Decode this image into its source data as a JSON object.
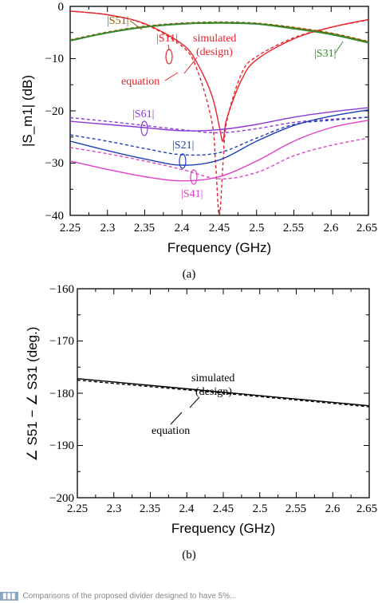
{
  "colors": {
    "s11": "#e8232a",
    "s21": "#1f3fb8",
    "s31": "#2e8b2e",
    "s41": "#e040c8",
    "s51": "#8b5a00",
    "s61": "#8a3ad8",
    "black": "#000000"
  },
  "chart_data": [
    {
      "type": "line",
      "caption": "(a)",
      "xlabel": "Frequency (GHz)",
      "ylabel": "|S_m1| (dB)",
      "xlim": [
        2.25,
        2.65
      ],
      "ylim": [
        -40,
        0
      ],
      "xticks": [
        "2.25",
        "2.3",
        "2.35",
        "2.4",
        "2.45",
        "2.5",
        "2.55",
        "2.6",
        "2.65"
      ],
      "yticks": [
        "0",
        "−10",
        "−20",
        "−30",
        "−40"
      ],
      "grid": false,
      "line_styles": {
        "solid": "simulated (design)",
        "dashed": "equation"
      },
      "series": [
        {
          "name": "|S11|",
          "color_key": "s11",
          "style": "solid",
          "x": [
            2.25,
            2.3,
            2.35,
            2.4,
            2.42,
            2.44,
            2.45,
            2.455,
            2.46,
            2.48,
            2.5,
            2.55,
            2.6,
            2.65
          ],
          "y": [
            -0.9,
            -1.6,
            -3.3,
            -7.2,
            -10.8,
            -17.0,
            -23.0,
            -25.8,
            -21.5,
            -14.0,
            -10.2,
            -6.2,
            -4.0,
            -2.5
          ]
        },
        {
          "name": "|S11|",
          "color_key": "s11",
          "style": "dashed",
          "x": [
            2.25,
            2.3,
            2.35,
            2.4,
            2.42,
            2.44,
            2.445,
            2.45,
            2.455,
            2.46,
            2.48,
            2.5,
            2.55,
            2.6,
            2.65
          ],
          "y": [
            -0.9,
            -1.6,
            -3.4,
            -7.6,
            -12.0,
            -22.0,
            -30.0,
            -40.0,
            -30.0,
            -22.0,
            -12.8,
            -9.6,
            -6.0,
            -4.0,
            -2.6
          ]
        },
        {
          "name": "|S51|",
          "color_key": "s51",
          "style": "solid",
          "x": [
            2.25,
            2.3,
            2.35,
            2.4,
            2.45,
            2.5,
            2.55,
            2.6,
            2.65
          ],
          "y": [
            -6.5,
            -5.0,
            -3.9,
            -3.3,
            -3.1,
            -3.3,
            -4.1,
            -5.2,
            -6.8
          ]
        },
        {
          "name": "|S51|",
          "color_key": "s51",
          "style": "dashed",
          "x": [
            2.25,
            2.3,
            2.35,
            2.4,
            2.45,
            2.5,
            2.55,
            2.6,
            2.65
          ],
          "y": [
            -6.4,
            -4.9,
            -3.8,
            -3.2,
            -3.0,
            -3.2,
            -4.0,
            -5.1,
            -6.7
          ]
        },
        {
          "name": "|S31|",
          "color_key": "s31",
          "style": "solid",
          "x": [
            2.25,
            2.3,
            2.35,
            2.4,
            2.45,
            2.5,
            2.55,
            2.6,
            2.65
          ],
          "y": [
            -6.6,
            -5.1,
            -4.0,
            -3.4,
            -3.2,
            -3.4,
            -4.3,
            -5.4,
            -7.0
          ]
        },
        {
          "name": "|S31|",
          "color_key": "s31",
          "style": "dashed",
          "x": [
            2.25,
            2.3,
            2.35,
            2.4,
            2.45,
            2.5,
            2.55,
            2.6,
            2.65
          ],
          "y": [
            -6.5,
            -5.0,
            -3.9,
            -3.3,
            -3.1,
            -3.3,
            -4.2,
            -5.3,
            -6.9
          ]
        },
        {
          "name": "|S61|",
          "color_key": "s61",
          "style": "solid",
          "x": [
            2.25,
            2.3,
            2.35,
            2.4,
            2.45,
            2.5,
            2.55,
            2.6,
            2.65
          ],
          "y": [
            -22.0,
            -22.6,
            -23.2,
            -23.8,
            -23.6,
            -22.6,
            -21.2,
            -20.2,
            -19.4
          ]
        },
        {
          "name": "|S61|",
          "color_key": "s61",
          "style": "dashed",
          "x": [
            2.25,
            2.3,
            2.35,
            2.4,
            2.45,
            2.5,
            2.55,
            2.6,
            2.65
          ],
          "y": [
            -21.3,
            -22.0,
            -22.8,
            -23.6,
            -24.2,
            -23.4,
            -22.2,
            -21.6,
            -21.2
          ]
        },
        {
          "name": "|S21|",
          "color_key": "s21",
          "style": "solid",
          "x": [
            2.25,
            2.3,
            2.35,
            2.4,
            2.45,
            2.5,
            2.55,
            2.6,
            2.65
          ],
          "y": [
            -25.8,
            -27.6,
            -29.2,
            -30.4,
            -29.4,
            -25.8,
            -22.8,
            -21.0,
            -19.8
          ]
        },
        {
          "name": "|S21|",
          "color_key": "s21",
          "style": "dashed",
          "x": [
            2.25,
            2.3,
            2.35,
            2.4,
            2.45,
            2.5,
            2.55,
            2.6,
            2.65
          ],
          "y": [
            -24.6,
            -25.8,
            -27.2,
            -28.4,
            -28.0,
            -25.2,
            -22.6,
            -21.8,
            -21.2
          ]
        },
        {
          "name": "|S41|",
          "color_key": "s41",
          "style": "solid",
          "x": [
            2.25,
            2.3,
            2.35,
            2.4,
            2.45,
            2.5,
            2.55,
            2.6,
            2.65
          ],
          "y": [
            -29.6,
            -31.2,
            -32.6,
            -33.4,
            -32.6,
            -29.6,
            -25.8,
            -23.2,
            -21.8
          ]
        },
        {
          "name": "|S41|",
          "color_key": "s41",
          "style": "dashed",
          "x": [
            2.25,
            2.3,
            2.35,
            2.4,
            2.45,
            2.5,
            2.55,
            2.6,
            2.65
          ],
          "y": [
            -27.0,
            -28.2,
            -29.6,
            -31.2,
            -33.0,
            -31.8,
            -28.6,
            -26.6,
            -25.2
          ]
        }
      ],
      "annotations": {
        "s51": "|S51|",
        "s11": "|S11|",
        "s31": "|S31|",
        "s61": "|S61|",
        "s21": "|S21|",
        "s41": "|S41|",
        "simulated": "simulated",
        "design": "(design)",
        "equation": "equation"
      }
    },
    {
      "type": "line",
      "caption": "(b)",
      "xlabel": "Frequency (GHz)",
      "ylabel": "∠ S51 − ∠ S31 (deg.)",
      "xlim": [
        2.25,
        2.65
      ],
      "ylim": [
        -200,
        -160
      ],
      "xticks": [
        "2.25",
        "2.3",
        "2.35",
        "2.4",
        "2.45",
        "2.5",
        "2.55",
        "2.6",
        "2.65"
      ],
      "yticks": [
        "−160",
        "−170",
        "−180",
        "−190",
        "−200"
      ],
      "grid": false,
      "series": [
        {
          "name": "simulated (design)",
          "style": "solid",
          "x": [
            2.25,
            2.45,
            2.65
          ],
          "y": [
            -177.2,
            -179.8,
            -182.4
          ]
        },
        {
          "name": "equation",
          "style": "dashed",
          "x": [
            2.25,
            2.45,
            2.65
          ],
          "y": [
            -177.5,
            -180.0,
            -182.6
          ]
        }
      ],
      "annotations": {
        "simulated": "simulated",
        "design": "(design)",
        "equation": "equation"
      }
    }
  ],
  "footer_text": "Comparisons of the proposed divider designed to have 5%..."
}
